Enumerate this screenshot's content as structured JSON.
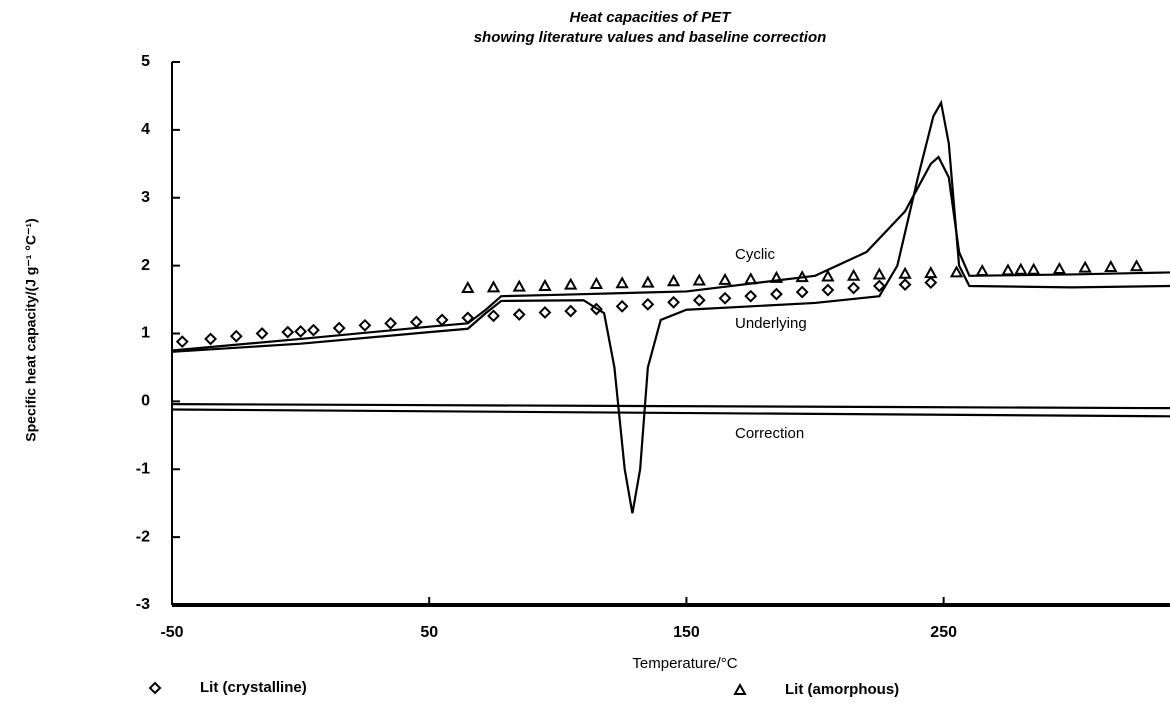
{
  "chart_data": {
    "type": "line",
    "title": "Heat capacities of PET",
    "subtitle": "showing literature values and baseline correction",
    "x_label": "Temperature/°C",
    "y_label": "Specific heat capacity/(J g⁻¹ °C⁻¹)",
    "xlim": [
      -50,
      338
    ],
    "ylim": [
      -3,
      5
    ],
    "xticks": [
      -50,
      50,
      150,
      250
    ],
    "yticks": [
      -3,
      -2,
      -1,
      0,
      1,
      2,
      3,
      4,
      5
    ],
    "annotations": [
      "Cyclic",
      "Underlying",
      "Correction"
    ],
    "series": [
      {
        "name": "Lit (crystalline)",
        "color": "#000000",
        "marker": "diamond",
        "x": [
          -46,
          -35,
          -25,
          -15,
          -5,
          0,
          5,
          15,
          25,
          35,
          45,
          55,
          65,
          75,
          85,
          95,
          105,
          115,
          125,
          135,
          145,
          155,
          165,
          175,
          185,
          195,
          205,
          215,
          225,
          235,
          245
        ],
        "values": [
          0.88,
          0.92,
          0.96,
          1.0,
          1.02,
          1.03,
          1.05,
          1.08,
          1.12,
          1.15,
          1.17,
          1.2,
          1.23,
          1.26,
          1.28,
          1.31,
          1.33,
          1.36,
          1.4,
          1.43,
          1.46,
          1.49,
          1.52,
          1.55,
          1.58,
          1.61,
          1.64,
          1.67,
          1.7,
          1.72,
          1.75
        ]
      },
      {
        "name": "Lit (amorphous)",
        "color": "#000000",
        "marker": "triangle",
        "x": [
          65,
          75,
          85,
          95,
          105,
          115,
          125,
          135,
          145,
          155,
          165,
          175,
          185,
          195,
          205,
          215,
          225,
          235,
          245,
          255,
          265,
          275,
          280,
          285,
          295,
          305,
          315,
          325
        ],
        "values": [
          1.67,
          1.68,
          1.69,
          1.7,
          1.72,
          1.73,
          1.74,
          1.75,
          1.77,
          1.78,
          1.79,
          1.8,
          1.82,
          1.83,
          1.84,
          1.85,
          1.87,
          1.88,
          1.89,
          1.9,
          1.92,
          1.93,
          1.94,
          1.94,
          1.95,
          1.97,
          1.98,
          1.99
        ]
      },
      {
        "name": "Cyclic",
        "color": "#000000",
        "x": [
          -50,
          0,
          50,
          65,
          72,
          78,
          100,
          150,
          200,
          220,
          235,
          245,
          248,
          252,
          256,
          260,
          300,
          338
        ],
        "values": [
          0.75,
          0.92,
          1.1,
          1.15,
          1.35,
          1.55,
          1.57,
          1.62,
          1.85,
          2.2,
          2.8,
          3.5,
          3.6,
          3.3,
          2.2,
          1.85,
          1.87,
          1.9
        ]
      },
      {
        "name": "Underlying",
        "color": "#000000",
        "x": [
          -50,
          0,
          50,
          65,
          72,
          78,
          110,
          118,
          122,
          126,
          129,
          132,
          135,
          140,
          150,
          200,
          225,
          232,
          240,
          246,
          249,
          252,
          256,
          260,
          300,
          338
        ],
        "values": [
          0.73,
          0.85,
          1.02,
          1.07,
          1.3,
          1.48,
          1.49,
          1.3,
          0.5,
          -1.0,
          -1.65,
          -1.0,
          0.5,
          1.2,
          1.35,
          1.45,
          1.55,
          2.0,
          3.3,
          4.2,
          4.4,
          3.8,
          2.0,
          1.7,
          1.68,
          1.7
        ]
      },
      {
        "name": "Correction",
        "color": "#000000",
        "x": [
          -50,
          338
        ],
        "values": [
          -0.12,
          -0.22
        ]
      },
      {
        "color": "#000000",
        "x": [
          -50,
          338
        ],
        "values": [
          -0.04,
          -0.1
        ]
      }
    ]
  }
}
